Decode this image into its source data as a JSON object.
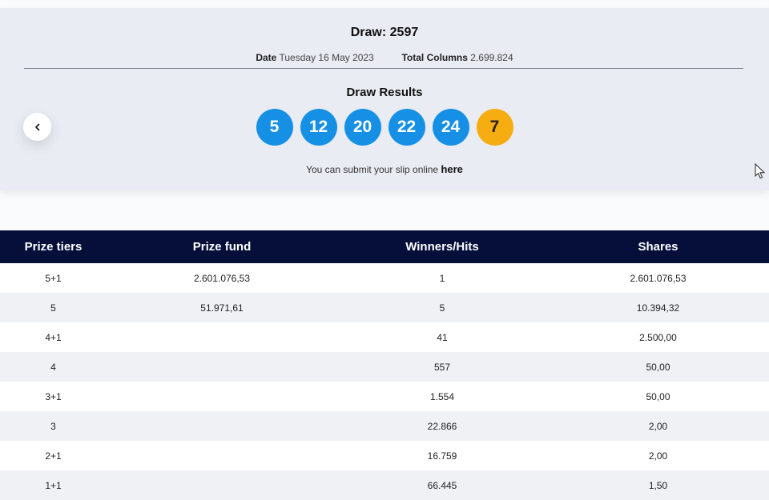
{
  "draw": {
    "title": "Draw: 2597",
    "date_label": "Date",
    "date_value": "Tuesday 16 May 2023",
    "columns_label": "Total Columns",
    "columns_value": "2.699.824"
  },
  "results": {
    "title": "Draw Results",
    "numbers": [
      "5",
      "12",
      "20",
      "22",
      "24"
    ],
    "bonus": "7",
    "colors": {
      "number": "#1590e4",
      "bonus": "#f6ad12"
    },
    "submit_text": "You can submit your slip online",
    "submit_link": "here"
  },
  "navigation": {
    "prev_icon": "chevron-left-icon"
  },
  "table": {
    "headers": [
      "Prize tiers",
      "Prize fund",
      "Winners/Hits",
      "Shares"
    ],
    "rows": [
      [
        "5+1",
        "2.601.076,53",
        "1",
        "2.601.076,53"
      ],
      [
        "5",
        "51.971,61",
        "5",
        "10.394,32"
      ],
      [
        "4+1",
        "",
        "41",
        "2.500,00"
      ],
      [
        "4",
        "",
        "557",
        "50,00"
      ],
      [
        "3+1",
        "",
        "1.554",
        "50,00"
      ],
      [
        "3",
        "",
        "22.866",
        "2,00"
      ],
      [
        "2+1",
        "",
        "16.759",
        "2,00"
      ],
      [
        "1+1",
        "",
        "66.445",
        "1,50"
      ]
    ],
    "header_color": "#060f3a"
  }
}
